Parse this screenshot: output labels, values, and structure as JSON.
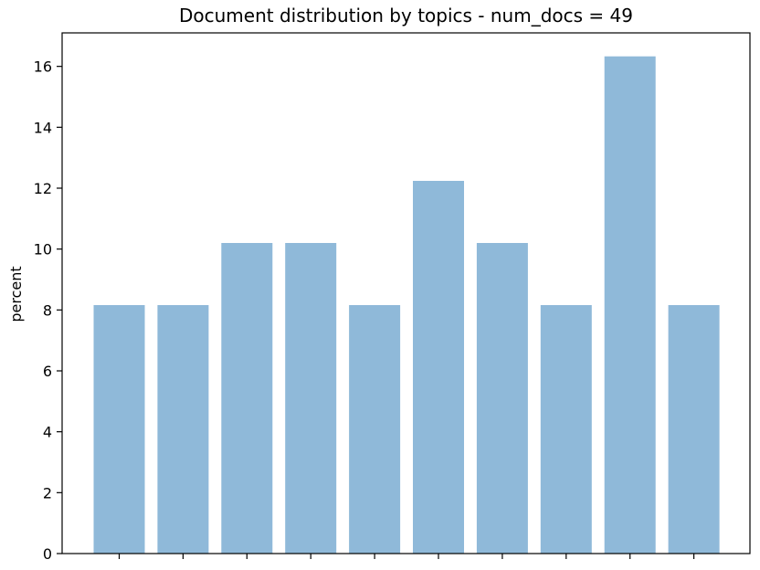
{
  "chart_data": {
    "type": "bar",
    "title": "Document distribution by topics - num_docs = 49",
    "ylabel": "percent",
    "xlabel": "",
    "categories": [
      "",
      "",
      "",
      "",
      "",
      "",
      "",
      "",
      "",
      ""
    ],
    "values": [
      8.16,
      8.16,
      10.2,
      10.2,
      8.16,
      12.24,
      10.2,
      8.16,
      16.33,
      8.16
    ],
    "ylim": [
      0,
      17.1
    ],
    "yticks": [
      0,
      2,
      4,
      6,
      8,
      10,
      12,
      14,
      16
    ],
    "grid": false,
    "bar_color": "#8fb9d9"
  }
}
